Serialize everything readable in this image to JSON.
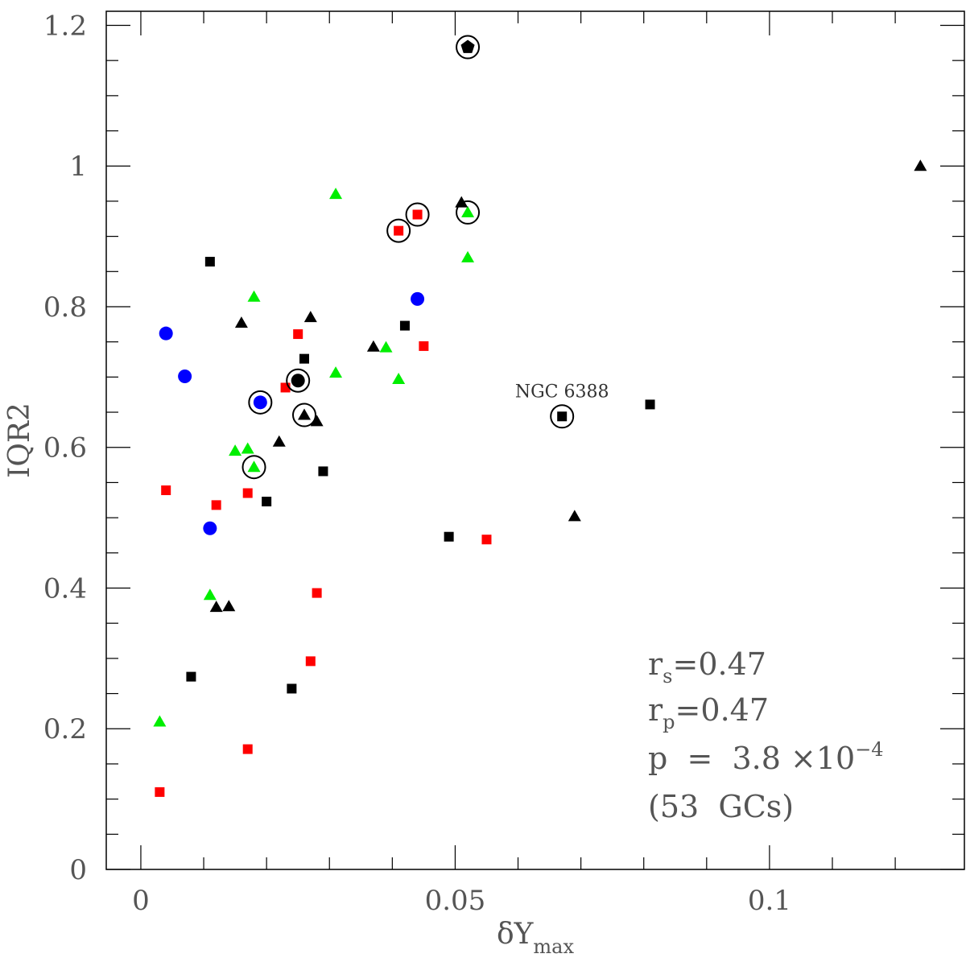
{
  "chart_data": {
    "type": "scatter",
    "title": "",
    "xlabel": {
      "main": "δY",
      "sub": "max"
    },
    "ylabel": "IQR2",
    "xlim": [
      -0.0055,
      0.131
    ],
    "ylim": [
      0,
      1.22
    ],
    "grid": false,
    "x_ticks": [
      {
        "value": 0,
        "label": "0"
      },
      {
        "value": 0.05,
        "label": "0.05"
      },
      {
        "value": 0.1,
        "label": "0.1"
      }
    ],
    "y_ticks": [
      {
        "value": 0,
        "label": "0"
      },
      {
        "value": 0.2,
        "label": "0.2"
      },
      {
        "value": 0.4,
        "label": "0.4"
      },
      {
        "value": 0.6,
        "label": "0.6"
      },
      {
        "value": 0.8,
        "label": "0.8"
      },
      {
        "value": 1.0,
        "label": "1"
      },
      {
        "value": 1.2,
        "label": "1.2"
      }
    ],
    "colors": {
      "red": "#ff0000",
      "green": "#00ee00",
      "blue": "#0000ff",
      "black": "#000000"
    },
    "points": [
      {
        "x": 0.003,
        "y": 0.11,
        "marker": "square",
        "color": "red",
        "circled": false
      },
      {
        "x": 0.004,
        "y": 0.539,
        "marker": "square",
        "color": "red",
        "circled": false
      },
      {
        "x": 0.012,
        "y": 0.518,
        "marker": "square",
        "color": "red",
        "circled": false
      },
      {
        "x": 0.017,
        "y": 0.535,
        "marker": "square",
        "color": "red",
        "circled": false
      },
      {
        "x": 0.017,
        "y": 0.171,
        "marker": "square",
        "color": "red",
        "circled": false
      },
      {
        "x": 0.023,
        "y": 0.685,
        "marker": "square",
        "color": "red",
        "circled": false
      },
      {
        "x": 0.025,
        "y": 0.761,
        "marker": "square",
        "color": "red",
        "circled": false
      },
      {
        "x": 0.027,
        "y": 0.296,
        "marker": "square",
        "color": "red",
        "circled": false
      },
      {
        "x": 0.028,
        "y": 0.393,
        "marker": "square",
        "color": "red",
        "circled": false
      },
      {
        "x": 0.041,
        "y": 0.908,
        "marker": "square",
        "color": "red",
        "circled": true
      },
      {
        "x": 0.044,
        "y": 0.931,
        "marker": "square",
        "color": "red",
        "circled": true
      },
      {
        "x": 0.045,
        "y": 0.744,
        "marker": "square",
        "color": "red",
        "circled": false
      },
      {
        "x": 0.055,
        "y": 0.469,
        "marker": "square",
        "color": "red",
        "circled": false
      },
      {
        "x": 0.008,
        "y": 0.274,
        "marker": "square",
        "color": "black",
        "circled": false
      },
      {
        "x": 0.011,
        "y": 0.864,
        "marker": "square",
        "color": "black",
        "circled": false
      },
      {
        "x": 0.02,
        "y": 0.523,
        "marker": "square",
        "color": "black",
        "circled": false
      },
      {
        "x": 0.024,
        "y": 0.257,
        "marker": "square",
        "color": "black",
        "circled": false
      },
      {
        "x": 0.026,
        "y": 0.726,
        "marker": "square",
        "color": "black",
        "circled": false
      },
      {
        "x": 0.029,
        "y": 0.566,
        "marker": "square",
        "color": "black",
        "circled": false
      },
      {
        "x": 0.042,
        "y": 0.773,
        "marker": "square",
        "color": "black",
        "circled": false
      },
      {
        "x": 0.049,
        "y": 0.473,
        "marker": "square",
        "color": "black",
        "circled": false
      },
      {
        "x": 0.067,
        "y": 0.644,
        "marker": "square",
        "color": "black",
        "circled": true,
        "label": "NGC 6388"
      },
      {
        "x": 0.081,
        "y": 0.661,
        "marker": "square",
        "color": "black",
        "circled": false
      },
      {
        "x": 0.003,
        "y": 0.21,
        "marker": "triangle",
        "color": "green",
        "circled": false
      },
      {
        "x": 0.011,
        "y": 0.39,
        "marker": "triangle",
        "color": "green",
        "circled": false
      },
      {
        "x": 0.015,
        "y": 0.595,
        "marker": "triangle",
        "color": "green",
        "circled": false
      },
      {
        "x": 0.017,
        "y": 0.598,
        "marker": "triangle",
        "color": "green",
        "circled": false
      },
      {
        "x": 0.018,
        "y": 0.572,
        "marker": "triangle",
        "color": "green",
        "circled": true
      },
      {
        "x": 0.018,
        "y": 0.814,
        "marker": "triangle",
        "color": "green",
        "circled": false
      },
      {
        "x": 0.031,
        "y": 0.706,
        "marker": "triangle",
        "color": "green",
        "circled": false
      },
      {
        "x": 0.031,
        "y": 0.96,
        "marker": "triangle",
        "color": "green",
        "circled": false
      },
      {
        "x": 0.039,
        "y": 0.742,
        "marker": "triangle",
        "color": "green",
        "circled": false
      },
      {
        "x": 0.041,
        "y": 0.697,
        "marker": "triangle",
        "color": "green",
        "circled": false
      },
      {
        "x": 0.052,
        "y": 0.934,
        "marker": "triangle",
        "color": "green",
        "circled": true
      },
      {
        "x": 0.052,
        "y": 0.87,
        "marker": "triangle",
        "color": "green",
        "circled": false
      },
      {
        "x": 0.012,
        "y": 0.373,
        "marker": "triangle",
        "color": "black",
        "circled": false
      },
      {
        "x": 0.014,
        "y": 0.374,
        "marker": "triangle",
        "color": "black",
        "circled": false
      },
      {
        "x": 0.016,
        "y": 0.777,
        "marker": "triangle",
        "color": "black",
        "circled": false
      },
      {
        "x": 0.022,
        "y": 0.608,
        "marker": "triangle",
        "color": "black",
        "circled": false
      },
      {
        "x": 0.026,
        "y": 0.646,
        "marker": "triangle",
        "color": "black",
        "circled": true
      },
      {
        "x": 0.027,
        "y": 0.785,
        "marker": "triangle",
        "color": "black",
        "circled": false
      },
      {
        "x": 0.028,
        "y": 0.637,
        "marker": "triangle",
        "color": "black",
        "circled": false
      },
      {
        "x": 0.037,
        "y": 0.743,
        "marker": "triangle",
        "color": "black",
        "circled": false
      },
      {
        "x": 0.051,
        "y": 0.948,
        "marker": "triangle",
        "color": "black",
        "circled": false
      },
      {
        "x": 0.069,
        "y": 0.502,
        "marker": "triangle",
        "color": "black",
        "circled": false
      },
      {
        "x": 0.124,
        "y": 1.0,
        "marker": "triangle",
        "color": "black",
        "circled": false
      },
      {
        "x": 0.004,
        "y": 0.762,
        "marker": "circle",
        "color": "blue",
        "circled": false
      },
      {
        "x": 0.007,
        "y": 0.701,
        "marker": "circle",
        "color": "blue",
        "circled": false
      },
      {
        "x": 0.011,
        "y": 0.485,
        "marker": "circle",
        "color": "blue",
        "circled": false
      },
      {
        "x": 0.019,
        "y": 0.664,
        "marker": "circle",
        "color": "blue",
        "circled": true
      },
      {
        "x": 0.044,
        "y": 0.811,
        "marker": "circle",
        "color": "blue",
        "circled": false
      },
      {
        "x": 0.025,
        "y": 0.695,
        "marker": "circle",
        "color": "black",
        "circled": true
      },
      {
        "x": 0.052,
        "y": 1.169,
        "marker": "pentagon",
        "color": "black",
        "circled": true
      }
    ],
    "annotations": [
      {
        "lines": [
          {
            "main": "r",
            "sub": "s",
            "rest": "=0.47"
          }
        ]
      },
      {
        "lines": [
          {
            "main": "r",
            "sub": "p",
            "rest": "=0.47"
          }
        ]
      },
      {
        "lines": [
          {
            "main": "p  =  3.8 ×10",
            "sup": "−4"
          }
        ]
      },
      {
        "lines": [
          {
            "main": "(53  GCs)"
          }
        ]
      }
    ]
  }
}
